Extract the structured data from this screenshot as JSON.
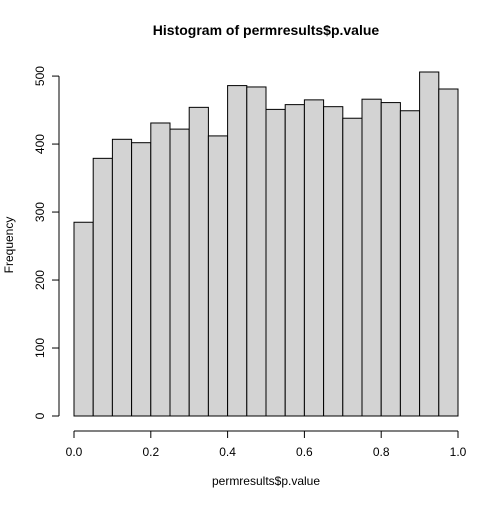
{
  "chart_data": {
    "type": "bar",
    "title": "Histogram of permresults$p.value",
    "xlabel": "permresults$p.value",
    "ylabel": "Frequency",
    "bin_edges": [
      0.0,
      0.05,
      0.1,
      0.15,
      0.2,
      0.25,
      0.3,
      0.35,
      0.4,
      0.45,
      0.5,
      0.55,
      0.6,
      0.65,
      0.7,
      0.75,
      0.8,
      0.85,
      0.9,
      0.95,
      1.0
    ],
    "values": [
      285,
      379,
      407,
      402,
      431,
      422,
      454,
      412,
      486,
      484,
      451,
      458,
      465,
      455,
      438,
      466,
      461,
      449,
      506,
      481
    ],
    "xlim": [
      0,
      1
    ],
    "ylim": [
      0,
      506
    ],
    "x_ticks": [
      {
        "value": 0.0,
        "label": "0.0"
      },
      {
        "value": 0.2,
        "label": "0.2"
      },
      {
        "value": 0.4,
        "label": "0.4"
      },
      {
        "value": 0.6,
        "label": "0.6"
      },
      {
        "value": 0.8,
        "label": "0.8"
      },
      {
        "value": 1.0,
        "label": "1.0"
      }
    ],
    "y_ticks": [
      {
        "value": 0,
        "label": "0"
      },
      {
        "value": 100,
        "label": "100"
      },
      {
        "value": 200,
        "label": "200"
      },
      {
        "value": 300,
        "label": "300"
      },
      {
        "value": 400,
        "label": "400"
      },
      {
        "value": 500,
        "label": "500"
      }
    ],
    "bar_fill": "#d3d3d3",
    "bar_stroke": "#000000",
    "grid": false,
    "legend": "none"
  }
}
